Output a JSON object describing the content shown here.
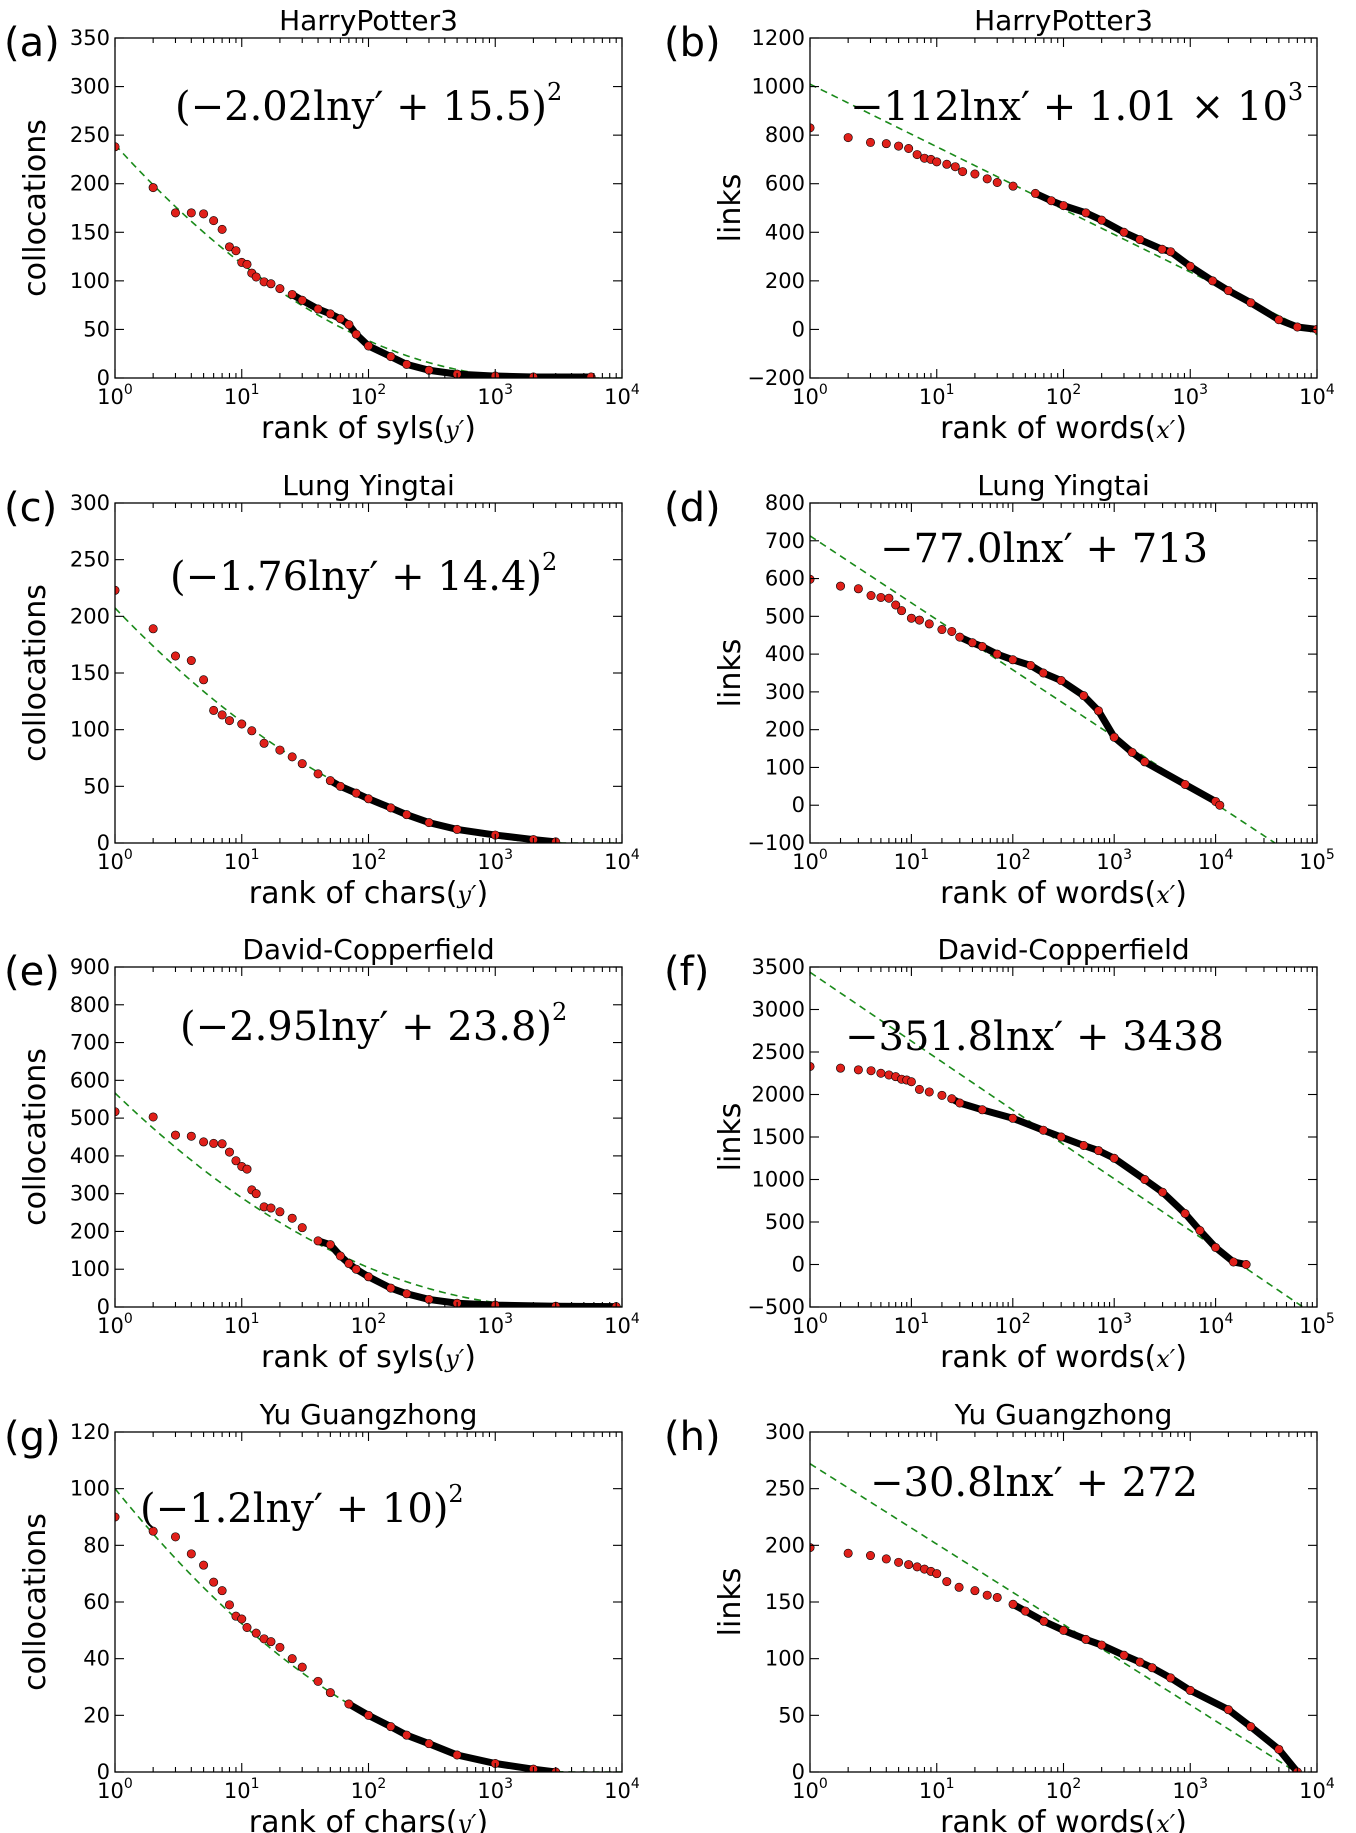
{
  "chart_data": [
    {
      "panel": "(a)",
      "type": "scatter",
      "title": "HarryPotter3",
      "xlabel": "rank of syls",
      "xvar": "y′",
      "ylabel": "collocations",
      "formula": "(−2.02lny′ + 15.5)",
      "formula_exp": "2",
      "xscale": "log",
      "xlim": [
        1,
        10000
      ],
      "ylim": [
        0,
        350
      ],
      "yticks": [
        0,
        50,
        100,
        150,
        200,
        250,
        300,
        350
      ],
      "fit": {
        "kind": "squared_log",
        "a": -2.02,
        "b": 15.5
      },
      "points": [
        [
          1,
          238
        ],
        [
          2,
          196
        ],
        [
          3,
          170
        ],
        [
          4,
          170
        ],
        [
          5,
          169
        ],
        [
          6,
          162
        ],
        [
          7,
          153
        ],
        [
          8,
          135
        ],
        [
          9,
          131
        ],
        [
          10,
          119
        ],
        [
          11,
          117
        ],
        [
          12,
          108
        ],
        [
          13,
          104
        ],
        [
          15,
          99
        ],
        [
          17,
          97
        ],
        [
          20,
          92
        ],
        [
          25,
          86
        ],
        [
          30,
          80
        ],
        [
          40,
          71
        ],
        [
          50,
          66
        ],
        [
          60,
          61
        ],
        [
          70,
          55
        ],
        [
          80,
          45
        ],
        [
          100,
          33
        ],
        [
          150,
          22
        ],
        [
          200,
          14
        ],
        [
          300,
          8
        ],
        [
          500,
          4
        ],
        [
          1000,
          2
        ],
        [
          2000,
          1
        ],
        [
          5700,
          1
        ]
      ],
      "black_from": 25
    },
    {
      "panel": "(b)",
      "type": "scatter",
      "title": "HarryPotter3",
      "xlabel": "rank of words",
      "xvar": "x′",
      "ylabel": "links",
      "formula": "−112lnx′ + 1.01 × 10",
      "formula_exp": "3",
      "xscale": "log",
      "xlim": [
        1,
        10000
      ],
      "ylim": [
        -200,
        1200
      ],
      "yticks": [
        -200,
        0,
        200,
        400,
        600,
        800,
        1000,
        1200
      ],
      "fit": {
        "kind": "log",
        "a": -112,
        "b": 1010
      },
      "points": [
        [
          1,
          830
        ],
        [
          2,
          790
        ],
        [
          3,
          770
        ],
        [
          4,
          765
        ],
        [
          5,
          755
        ],
        [
          6,
          745
        ],
        [
          7,
          720
        ],
        [
          8,
          705
        ],
        [
          9,
          700
        ],
        [
          10,
          690
        ],
        [
          12,
          680
        ],
        [
          14,
          670
        ],
        [
          16,
          650
        ],
        [
          20,
          640
        ],
        [
          25,
          620
        ],
        [
          30,
          605
        ],
        [
          40,
          590
        ],
        [
          60,
          560
        ],
        [
          80,
          530
        ],
        [
          100,
          510
        ],
        [
          150,
          480
        ],
        [
          200,
          450
        ],
        [
          300,
          400
        ],
        [
          400,
          370
        ],
        [
          600,
          330
        ],
        [
          700,
          320
        ],
        [
          1000,
          260
        ],
        [
          1500,
          200
        ],
        [
          2000,
          160
        ],
        [
          3000,
          110
        ],
        [
          5000,
          40
        ],
        [
          7000,
          10
        ],
        [
          10000,
          0
        ]
      ],
      "black_from": 60
    },
    {
      "panel": "(c)",
      "type": "scatter",
      "title": "Lung Yingtai",
      "xlabel": "rank of chars",
      "xvar": "y′",
      "ylabel": "collocations",
      "formula": "(−1.76lny′ + 14.4)",
      "formula_exp": "2",
      "xscale": "log",
      "xlim": [
        1,
        10000
      ],
      "ylim": [
        0,
        300
      ],
      "yticks": [
        0,
        50,
        100,
        150,
        200,
        250,
        300
      ],
      "fit": {
        "kind": "squared_log",
        "a": -1.76,
        "b": 14.4
      },
      "points": [
        [
          1,
          223
        ],
        [
          2,
          189
        ],
        [
          3,
          165
        ],
        [
          4,
          161
        ],
        [
          5,
          144
        ],
        [
          6,
          117
        ],
        [
          7,
          113
        ],
        [
          8,
          108
        ],
        [
          10,
          105
        ],
        [
          12,
          99
        ],
        [
          15,
          88
        ],
        [
          20,
          82
        ],
        [
          25,
          76
        ],
        [
          30,
          70
        ],
        [
          40,
          61
        ],
        [
          50,
          55
        ],
        [
          60,
          50
        ],
        [
          80,
          44
        ],
        [
          100,
          39
        ],
        [
          150,
          31
        ],
        [
          200,
          25
        ],
        [
          300,
          18
        ],
        [
          500,
          12
        ],
        [
          1000,
          7
        ],
        [
          2000,
          3
        ],
        [
          3000,
          1
        ]
      ],
      "black_from": 50
    },
    {
      "panel": "(d)",
      "type": "scatter",
      "title": "Lung Yingtai",
      "xlabel": "rank of words",
      "xvar": "x′",
      "ylabel": "links",
      "formula": "−77.0lnx′ + 713",
      "formula_exp": "",
      "xscale": "log",
      "xlim": [
        1,
        100000
      ],
      "ylim": [
        -100,
        800
      ],
      "yticks": [
        -100,
        0,
        100,
        200,
        300,
        400,
        500,
        600,
        700,
        800
      ],
      "fit": {
        "kind": "log",
        "a": -77.0,
        "b": 713
      },
      "points": [
        [
          1,
          598
        ],
        [
          2,
          580
        ],
        [
          3,
          573
        ],
        [
          4,
          555
        ],
        [
          5,
          550
        ],
        [
          6,
          548
        ],
        [
          7,
          530
        ],
        [
          8,
          515
        ],
        [
          10,
          495
        ],
        [
          12,
          490
        ],
        [
          15,
          480
        ],
        [
          20,
          465
        ],
        [
          25,
          460
        ],
        [
          30,
          445
        ],
        [
          40,
          430
        ],
        [
          50,
          420
        ],
        [
          70,
          400
        ],
        [
          100,
          385
        ],
        [
          150,
          370
        ],
        [
          200,
          350
        ],
        [
          300,
          330
        ],
        [
          500,
          290
        ],
        [
          700,
          250
        ],
        [
          1000,
          180
        ],
        [
          1500,
          140
        ],
        [
          2000,
          115
        ],
        [
          5000,
          55
        ],
        [
          10000,
          10
        ],
        [
          11000,
          0
        ]
      ],
      "black_from": 30
    },
    {
      "panel": "(e)",
      "type": "scatter",
      "title": "David-Copperfield",
      "xlabel": "rank of syls",
      "xvar": "y′",
      "ylabel": "collocations",
      "formula": "(−2.95lny′ + 23.8)",
      "formula_exp": "2",
      "xscale": "log",
      "xlim": [
        1,
        10000
      ],
      "ylim": [
        0,
        900
      ],
      "yticks": [
        0,
        100,
        200,
        300,
        400,
        500,
        600,
        700,
        800,
        900
      ],
      "fit": {
        "kind": "squared_log",
        "a": -2.95,
        "b": 23.8
      },
      "points": [
        [
          1,
          517
        ],
        [
          2,
          503
        ],
        [
          3,
          455
        ],
        [
          4,
          452
        ],
        [
          5,
          437
        ],
        [
          6,
          433
        ],
        [
          7,
          432
        ],
        [
          8,
          410
        ],
        [
          9,
          387
        ],
        [
          10,
          372
        ],
        [
          11,
          365
        ],
        [
          12,
          310
        ],
        [
          13,
          300
        ],
        [
          15,
          265
        ],
        [
          17,
          262
        ],
        [
          20,
          252
        ],
        [
          25,
          235
        ],
        [
          30,
          210
        ],
        [
          40,
          175
        ],
        [
          50,
          165
        ],
        [
          60,
          135
        ],
        [
          70,
          115
        ],
        [
          80,
          100
        ],
        [
          100,
          80
        ],
        [
          150,
          50
        ],
        [
          200,
          35
        ],
        [
          300,
          20
        ],
        [
          500,
          10
        ],
        [
          1000,
          5
        ],
        [
          3000,
          2
        ],
        [
          9000,
          1
        ]
      ],
      "black_from": 35
    },
    {
      "panel": "(f)",
      "type": "scatter",
      "title": "David-Copperfield",
      "xlabel": "rank of words",
      "xvar": "x′",
      "ylabel": "links",
      "formula": "−351.8lnx′ + 3438",
      "formula_exp": "",
      "xscale": "log",
      "xlim": [
        1,
        100000
      ],
      "ylim": [
        -500,
        3500
      ],
      "yticks": [
        -500,
        0,
        500,
        1000,
        1500,
        2000,
        2500,
        3000,
        3500
      ],
      "fit": {
        "kind": "log",
        "a": -351.8,
        "b": 3438
      },
      "points": [
        [
          1,
          2330
        ],
        [
          2,
          2310
        ],
        [
          3,
          2290
        ],
        [
          4,
          2280
        ],
        [
          5,
          2250
        ],
        [
          6,
          2230
        ],
        [
          7,
          2210
        ],
        [
          8,
          2180
        ],
        [
          9,
          2170
        ],
        [
          10,
          2150
        ],
        [
          12,
          2060
        ],
        [
          15,
          2030
        ],
        [
          20,
          1990
        ],
        [
          25,
          1950
        ],
        [
          30,
          1900
        ],
        [
          50,
          1820
        ],
        [
          100,
          1720
        ],
        [
          200,
          1580
        ],
        [
          300,
          1500
        ],
        [
          500,
          1400
        ],
        [
          700,
          1340
        ],
        [
          1000,
          1250
        ],
        [
          2000,
          1000
        ],
        [
          3000,
          850
        ],
        [
          5000,
          600
        ],
        [
          7000,
          400
        ],
        [
          10000,
          200
        ],
        [
          15000,
          30
        ],
        [
          20000,
          0
        ]
      ],
      "black_from": 25
    },
    {
      "panel": "(g)",
      "type": "scatter",
      "title": "Yu Guangzhong",
      "xlabel": "rank of chars",
      "xvar": "y′",
      "ylabel": "collocations",
      "formula": "(−1.2lny′ + 10)",
      "formula_exp": "2",
      "xscale": "log",
      "xlim": [
        1,
        10000
      ],
      "ylim": [
        0,
        120
      ],
      "yticks": [
        0,
        20,
        40,
        60,
        80,
        100,
        120
      ],
      "fit": {
        "kind": "squared_log",
        "a": -1.2,
        "b": 10
      },
      "points": [
        [
          1,
          90
        ],
        [
          2,
          85
        ],
        [
          3,
          83
        ],
        [
          4,
          77
        ],
        [
          5,
          73
        ],
        [
          6,
          67
        ],
        [
          7,
          64
        ],
        [
          8,
          59
        ],
        [
          9,
          55
        ],
        [
          10,
          54
        ],
        [
          11,
          51
        ],
        [
          13,
          49
        ],
        [
          15,
          47
        ],
        [
          17,
          46
        ],
        [
          20,
          44
        ],
        [
          25,
          40
        ],
        [
          30,
          37
        ],
        [
          40,
          32
        ],
        [
          50,
          28
        ],
        [
          70,
          24
        ],
        [
          100,
          20
        ],
        [
          150,
          16
        ],
        [
          200,
          13
        ],
        [
          300,
          10
        ],
        [
          500,
          6
        ],
        [
          1000,
          3
        ],
        [
          2000,
          1
        ],
        [
          3000,
          0
        ]
      ],
      "black_from": 70
    },
    {
      "panel": "(h)",
      "type": "scatter",
      "title": "Yu Guangzhong",
      "xlabel": "rank of words",
      "xvar": "x′",
      "ylabel": "links",
      "formula": "−30.8lnx′ + 272",
      "formula_exp": "",
      "xscale": "log",
      "xlim": [
        1,
        10000
      ],
      "ylim": [
        0,
        300
      ],
      "yticks": [
        0,
        50,
        100,
        150,
        200,
        250,
        300
      ],
      "fit": {
        "kind": "log",
        "a": -30.8,
        "b": 272
      },
      "points": [
        [
          1,
          198
        ],
        [
          2,
          193
        ],
        [
          3,
          191
        ],
        [
          4,
          188
        ],
        [
          5,
          185
        ],
        [
          6,
          183
        ],
        [
          7,
          181
        ],
        [
          8,
          179
        ],
        [
          9,
          177
        ],
        [
          10,
          175
        ],
        [
          12,
          168
        ],
        [
          15,
          163
        ],
        [
          20,
          160
        ],
        [
          25,
          156
        ],
        [
          30,
          154
        ],
        [
          40,
          148
        ],
        [
          50,
          142
        ],
        [
          70,
          133
        ],
        [
          100,
          125
        ],
        [
          150,
          117
        ],
        [
          200,
          112
        ],
        [
          300,
          103
        ],
        [
          400,
          97
        ],
        [
          500,
          92
        ],
        [
          700,
          83
        ],
        [
          1000,
          72
        ],
        [
          2000,
          55
        ],
        [
          3000,
          40
        ],
        [
          5000,
          20
        ],
        [
          7000,
          0
        ]
      ],
      "black_from": 40
    }
  ]
}
